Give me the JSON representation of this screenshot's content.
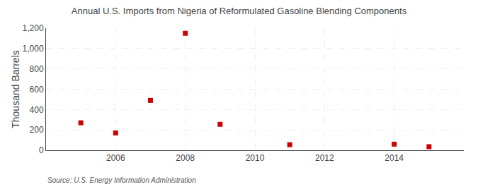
{
  "chart_data": {
    "type": "scatter",
    "title": "Annual U.S. Imports from Nigeria of Reformulated Gasoline Blending Components",
    "y_label": "Thousand Barrels",
    "source": "Source: U.S. Energy Information Administration",
    "x": [
      2005,
      2006,
      2007,
      2008,
      2009,
      2011,
      2014,
      2015
    ],
    "values": [
      270,
      170,
      490,
      1150,
      255,
      55,
      60,
      35
    ],
    "color": "#cc0000",
    "marker": "square",
    "xlim": [
      2004.0,
      2016.0
    ],
    "xticks": [
      2006,
      2008,
      2010,
      2012,
      2014
    ],
    "ylim": [
      0,
      1200
    ],
    "yticks": [
      0,
      200,
      400,
      600,
      800,
      {
        "value": 1000,
        "label": "1,000"
      },
      {
        "value": 1200,
        "label": "1,200"
      }
    ],
    "grid": true
  }
}
